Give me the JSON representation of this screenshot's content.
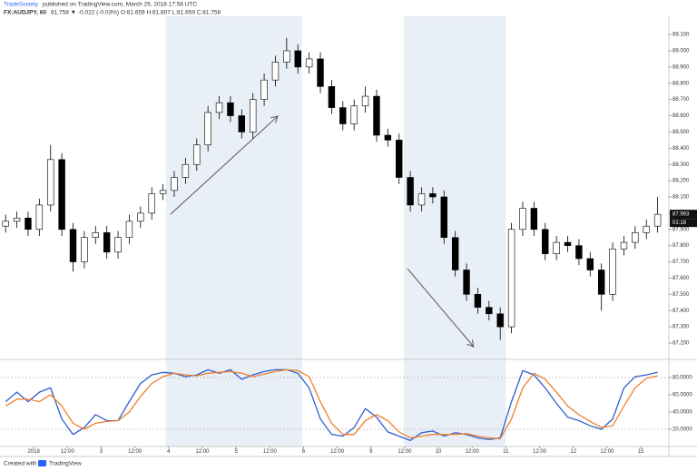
{
  "header": {
    "author": "TradeSociety",
    "published": "published on TradingView.com, March 29, 2018 17:58 UTC",
    "symbol": "FX:AUDJPY, 60",
    "quote": "81.758 ▼ -0.022 (-0.03%) O:81.659 H:81.807 L:81.659 C:81.758"
  },
  "footer": {
    "created": "Created with",
    "brand": "TradingView"
  },
  "chart_data": {
    "type": "candlestick",
    "x": [
      2,
      6,
      10,
      14,
      18,
      22,
      26,
      30,
      34,
      38,
      42,
      46,
      50,
      54,
      58,
      62,
      66,
      70,
      74,
      78,
      82,
      86,
      90,
      94,
      98,
      102,
      106,
      110,
      114,
      118,
      122,
      126,
      130,
      134,
      138,
      142,
      146,
      150,
      154,
      158,
      162,
      166,
      170,
      174,
      178,
      182,
      186,
      190,
      194,
      198,
      202,
      206,
      210,
      214,
      218,
      222,
      226,
      230,
      234
    ],
    "open": [
      87.92,
      87.95,
      87.97,
      87.9,
      88.05,
      88.33,
      87.9,
      87.7,
      87.85,
      87.88,
      87.76,
      87.85,
      87.95,
      88.0,
      88.12,
      88.14,
      88.22,
      88.3,
      88.42,
      88.62,
      88.68,
      88.6,
      88.5,
      88.7,
      88.82,
      88.93,
      89.0,
      88.9,
      88.95,
      88.78,
      88.65,
      88.55,
      88.66,
      88.72,
      88.48,
      88.45,
      88.22,
      88.05,
      88.12,
      88.1,
      87.85,
      87.65,
      87.5,
      87.42,
      87.38,
      87.3,
      87.9,
      88.03,
      87.9,
      87.75,
      87.82,
      87.8,
      87.72,
      87.65,
      87.5,
      87.78,
      87.82,
      87.88,
      87.92
    ],
    "high": [
      87.99,
      88.01,
      88.01,
      88.09,
      88.42,
      88.37,
      87.94,
      87.89,
      87.92,
      87.92,
      87.89,
      87.99,
      88.04,
      88.16,
      88.18,
      88.26,
      88.34,
      88.46,
      88.66,
      88.72,
      88.72,
      88.64,
      88.74,
      88.86,
      88.97,
      89.08,
      89.04,
      88.99,
      88.99,
      88.82,
      88.69,
      88.7,
      88.78,
      88.76,
      88.52,
      88.49,
      88.26,
      88.16,
      88.16,
      88.14,
      87.89,
      87.69,
      87.54,
      87.46,
      87.42,
      87.94,
      88.07,
      88.07,
      87.94,
      87.86,
      87.86,
      87.84,
      87.76,
      87.69,
      87.82,
      87.86,
      87.92,
      87.96,
      88.1
    ],
    "low": [
      87.88,
      87.91,
      87.86,
      87.86,
      88.01,
      87.86,
      87.64,
      87.66,
      87.81,
      87.72,
      87.72,
      87.81,
      87.91,
      87.96,
      88.08,
      88.1,
      88.18,
      88.26,
      88.38,
      88.58,
      88.56,
      88.46,
      88.46,
      88.66,
      88.78,
      88.89,
      88.86,
      88.86,
      88.74,
      88.61,
      88.51,
      88.51,
      88.62,
      88.44,
      88.41,
      88.18,
      88.01,
      88.01,
      88.06,
      87.81,
      87.61,
      87.46,
      87.38,
      87.34,
      87.22,
      87.26,
      87.86,
      87.86,
      87.71,
      87.71,
      87.76,
      87.68,
      87.61,
      87.4,
      87.46,
      87.74,
      87.78,
      87.84,
      87.88
    ],
    "close": [
      87.95,
      87.97,
      87.9,
      88.05,
      88.33,
      87.9,
      87.7,
      87.85,
      87.88,
      87.76,
      87.85,
      87.95,
      88.0,
      88.12,
      88.14,
      88.22,
      88.3,
      88.42,
      88.62,
      88.68,
      88.6,
      88.5,
      88.7,
      88.82,
      88.93,
      89.0,
      88.9,
      88.95,
      88.78,
      88.65,
      88.55,
      88.66,
      88.72,
      88.48,
      88.45,
      88.22,
      88.05,
      88.12,
      88.1,
      87.85,
      87.65,
      87.5,
      87.42,
      87.38,
      87.3,
      87.9,
      88.03,
      87.9,
      87.75,
      87.82,
      87.8,
      87.72,
      87.65,
      87.5,
      87.78,
      87.82,
      87.88,
      87.92,
      87.993
    ],
    "up_color": "#ffffff",
    "down_color": "#000000",
    "wick_color": "#000000",
    "xlim": [
      0,
      238
    ],
    "ylim": [
      87.105,
      89.201
    ],
    "yticks": [
      {
        "value": 87.2,
        "label": "87.200"
      },
      {
        "value": 87.3,
        "label": "87.300"
      },
      {
        "value": 87.4,
        "label": "87.400"
      },
      {
        "value": 87.5,
        "label": "87.500"
      },
      {
        "value": 87.6,
        "label": "87.600"
      },
      {
        "value": 87.7,
        "label": "87.700"
      },
      {
        "value": 87.8,
        "label": "87.800"
      },
      {
        "value": 87.9,
        "label": "87.900"
      },
      {
        "value": 88.0,
        "label": "88.000"
      },
      {
        "value": 88.1,
        "label": "88.100"
      },
      {
        "value": 88.2,
        "label": "88.200"
      },
      {
        "value": 88.3,
        "label": "88.300"
      },
      {
        "value": 88.4,
        "label": "88.400"
      },
      {
        "value": 88.5,
        "label": "88.500"
      },
      {
        "value": 88.6,
        "label": "88.600"
      },
      {
        "value": 88.7,
        "label": "88.700"
      },
      {
        "value": 88.8,
        "label": "88.800"
      },
      {
        "value": 88.9,
        "label": "88.900"
      },
      {
        "value": 89.0,
        "label": "89.000"
      },
      {
        "value": 89.1,
        "label": "89.100"
      }
    ],
    "xticks": [
      {
        "value": 12,
        "label": "2018"
      },
      {
        "value": 24,
        "label": "12:00"
      },
      {
        "value": 36,
        "label": "3"
      },
      {
        "value": 48,
        "label": "12:00"
      },
      {
        "value": 60,
        "label": "4"
      },
      {
        "value": 72,
        "label": "12:00"
      },
      {
        "value": 84,
        "label": "5"
      },
      {
        "value": 96,
        "label": "12:00"
      },
      {
        "value": 108,
        "label": "6"
      },
      {
        "value": 120,
        "label": "12:00"
      },
      {
        "value": 132,
        "label": "9"
      },
      {
        "value": 144,
        "label": "12:00"
      },
      {
        "value": 156,
        "label": "10"
      },
      {
        "value": 168,
        "label": "12:00"
      },
      {
        "value": 180,
        "label": "11"
      },
      {
        "value": 192,
        "label": "12:00"
      },
      {
        "value": 204,
        "label": "12"
      },
      {
        "value": 216,
        "label": "12:00"
      },
      {
        "value": 228,
        "label": "15"
      }
    ],
    "last_price": {
      "value": 87.993,
      "countdown": "01:18"
    },
    "shaded_ranges": [
      [
        59,
        107.5
      ],
      [
        143.7,
        180
      ]
    ],
    "shade_color": "#e9eff6",
    "arrows": [
      {
        "x": [
          60.7,
          98.8
        ],
        "y": [
          87.994,
          88.597
        ]
      },
      {
        "x": [
          145,
          168.5
        ],
        "y": [
          87.658,
          87.178
        ]
      }
    ],
    "indicator": {
      "type": "line",
      "ylim": [
        0,
        100
      ],
      "yticks": [
        {
          "value": 80,
          "label": "80.0000"
        },
        {
          "value": 60,
          "label": "60.0000"
        },
        {
          "value": 40,
          "label": "40.0000"
        },
        {
          "value": 20,
          "label": "20.0000"
        }
      ],
      "bands": [
        80,
        20
      ],
      "series": [
        {
          "color": "#2f5fd0",
          "values": [
            52,
            63,
            52,
            63,
            68,
            32,
            14,
            22,
            37,
            30,
            30,
            52,
            73,
            83,
            86,
            85,
            81,
            83,
            89,
            85,
            89,
            78,
            83,
            87,
            89,
            89,
            85,
            68,
            32,
            14,
            12,
            22,
            44,
            34,
            17,
            12,
            7,
            16,
            18,
            12,
            16,
            14,
            10,
            8,
            10,
            52,
            88,
            83,
            68,
            50,
            34,
            30,
            24,
            20,
            32,
            68,
            81,
            83,
            86
          ]
        },
        {
          "color": "#f07f2a",
          "values": [
            47,
            55,
            55,
            52,
            60,
            47,
            27,
            20,
            27,
            29,
            30,
            40,
            58,
            73,
            81,
            85,
            83,
            82,
            85,
            86,
            87,
            85,
            81,
            84,
            87,
            89,
            88,
            81,
            52,
            27,
            14,
            14,
            30,
            37,
            30,
            17,
            10,
            12,
            14,
            14,
            14,
            15,
            12,
            10,
            9,
            32,
            68,
            85,
            78,
            63,
            47,
            37,
            29,
            22,
            24,
            47,
            68,
            79,
            82
          ]
        }
      ]
    }
  }
}
